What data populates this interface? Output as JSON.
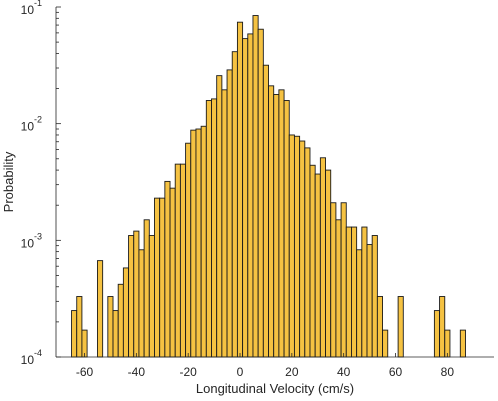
{
  "chart_data": {
    "type": "bar",
    "xlabel": "Longitudinal Velocity (cm/s)",
    "ylabel": "Probability",
    "yscale": "log",
    "xlim": [
      -71,
      98
    ],
    "ylim": [
      0.0001,
      0.1
    ],
    "xticks": [
      -60,
      -40,
      -20,
      0,
      20,
      40,
      60,
      80
    ],
    "yticks": [
      {
        "value": 0.1,
        "base": "10",
        "exp": "-1"
      },
      {
        "value": 0.01,
        "base": "10",
        "exp": "-2"
      },
      {
        "value": 0.001,
        "base": "10",
        "exp": "-3"
      },
      {
        "value": 0.0001,
        "base": "10",
        "exp": "-4"
      }
    ],
    "bar_color": "#f5c242",
    "bin_width": 2,
    "bins": [
      {
        "x": -64,
        "y": 0.00025
      },
      {
        "x": -62,
        "y": 0.00033
      },
      {
        "x": -60,
        "y": 0.00017
      },
      {
        "x": -54,
        "y": 0.00067
      },
      {
        "x": -50,
        "y": 0.00033
      },
      {
        "x": -48,
        "y": 0.00025
      },
      {
        "x": -46,
        "y": 0.00042
      },
      {
        "x": -44,
        "y": 0.00058
      },
      {
        "x": -42,
        "y": 0.0011
      },
      {
        "x": -40,
        "y": 0.0012
      },
      {
        "x": -38,
        "y": 0.00083
      },
      {
        "x": -36,
        "y": 0.0015
      },
      {
        "x": -34,
        "y": 0.0011
      },
      {
        "x": -32,
        "y": 0.0023
      },
      {
        "x": -30,
        "y": 0.0023
      },
      {
        "x": -28,
        "y": 0.0032
      },
      {
        "x": -26,
        "y": 0.0028
      },
      {
        "x": -24,
        "y": 0.0045
      },
      {
        "x": -22,
        "y": 0.0045
      },
      {
        "x": -20,
        "y": 0.0068
      },
      {
        "x": -18,
        "y": 0.0088
      },
      {
        "x": -16,
        "y": 0.009
      },
      {
        "x": -14,
        "y": 0.0095
      },
      {
        "x": -12,
        "y": 0.0158
      },
      {
        "x": -10,
        "y": 0.0163
      },
      {
        "x": -8,
        "y": 0.0258
      },
      {
        "x": -6,
        "y": 0.0195
      },
      {
        "x": -4,
        "y": 0.0289
      },
      {
        "x": -2,
        "y": 0.0414
      },
      {
        "x": 0,
        "y": 0.0741
      },
      {
        "x": 2,
        "y": 0.0536
      },
      {
        "x": 4,
        "y": 0.0588
      },
      {
        "x": 6,
        "y": 0.0845
      },
      {
        "x": 8,
        "y": 0.0645
      },
      {
        "x": 10,
        "y": 0.0317
      },
      {
        "x": 12,
        "y": 0.0211
      },
      {
        "x": 14,
        "y": 0.0178
      },
      {
        "x": 16,
        "y": 0.0195
      },
      {
        "x": 18,
        "y": 0.0158
      },
      {
        "x": 20,
        "y": 0.008
      },
      {
        "x": 22,
        "y": 0.0078
      },
      {
        "x": 24,
        "y": 0.0071
      },
      {
        "x": 26,
        "y": 0.0062
      },
      {
        "x": 28,
        "y": 0.0044
      },
      {
        "x": 30,
        "y": 0.0037
      },
      {
        "x": 32,
        "y": 0.0051
      },
      {
        "x": 34,
        "y": 0.004
      },
      {
        "x": 36,
        "y": 0.0021
      },
      {
        "x": 38,
        "y": 0.0015
      },
      {
        "x": 40,
        "y": 0.0021
      },
      {
        "x": 42,
        "y": 0.0013
      },
      {
        "x": 44,
        "y": 0.0013
      },
      {
        "x": 46,
        "y": 0.00083
      },
      {
        "x": 48,
        "y": 0.0013
      },
      {
        "x": 50,
        "y": 0.00092
      },
      {
        "x": 52,
        "y": 0.0011
      },
      {
        "x": 54,
        "y": 0.00033
      },
      {
        "x": 56,
        "y": 0.00017
      },
      {
        "x": 62,
        "y": 0.00033
      },
      {
        "x": 76,
        "y": 0.00025
      },
      {
        "x": 78,
        "y": 0.00033
      },
      {
        "x": 80,
        "y": 0.00017
      },
      {
        "x": 86,
        "y": 0.00017
      }
    ]
  }
}
